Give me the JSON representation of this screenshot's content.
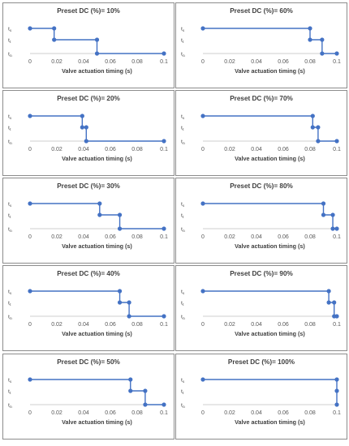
{
  "chart_data": [
    {
      "type": "line",
      "title": "Preset DC (%)= 10%",
      "xlabel": "Valve actuation timing (s)",
      "y_levels": [
        "ts",
        "tt",
        "tn"
      ],
      "xlim": [
        0,
        0.1
      ],
      "x_ticks": [
        "0",
        "0.02",
        "0.04",
        "0.06",
        "0.08",
        "0.1"
      ],
      "points": [
        {
          "x": 0,
          "y": "ts"
        },
        {
          "x": 0.018,
          "y": "ts"
        },
        {
          "x": 0.018,
          "y": "tt"
        },
        {
          "x": 0.05,
          "y": "tt"
        },
        {
          "x": 0.05,
          "y": "tn"
        },
        {
          "x": 0.1,
          "y": "tn"
        }
      ]
    },
    {
      "type": "line",
      "title": "Preset DC (%)= 60%",
      "xlabel": "Valve actuation timing (s)",
      "y_levels": [
        "ts",
        "tt",
        "tn"
      ],
      "xlim": [
        0,
        0.1
      ],
      "x_ticks": [
        "0",
        "0.02",
        "0.04",
        "0.06",
        "0.08",
        "0.1"
      ],
      "points": [
        {
          "x": 0,
          "y": "ts"
        },
        {
          "x": 0.08,
          "y": "ts"
        },
        {
          "x": 0.08,
          "y": "tt"
        },
        {
          "x": 0.089,
          "y": "tt"
        },
        {
          "x": 0.089,
          "y": "tn"
        },
        {
          "x": 0.1,
          "y": "tn"
        }
      ]
    },
    {
      "type": "line",
      "title": "Preset DC (%)= 20%",
      "xlabel": "Valve actuation timing (s)",
      "y_levels": [
        "ts",
        "tt",
        "tn"
      ],
      "xlim": [
        0,
        0.1
      ],
      "x_ticks": [
        "0",
        "0.02",
        "0.04",
        "0.06",
        "0.08",
        "0.1"
      ],
      "points": [
        {
          "x": 0,
          "y": "ts"
        },
        {
          "x": 0.039,
          "y": "ts"
        },
        {
          "x": 0.039,
          "y": "tt"
        },
        {
          "x": 0.042,
          "y": "tt"
        },
        {
          "x": 0.042,
          "y": "tn"
        },
        {
          "x": 0.1,
          "y": "tn"
        }
      ]
    },
    {
      "type": "line",
      "title": "Preset DC (%)= 70%",
      "xlabel": "Valve actuation timing (s)",
      "y_levels": [
        "ts",
        "tt",
        "tn"
      ],
      "xlim": [
        0,
        0.1
      ],
      "x_ticks": [
        "0",
        "0.02",
        "0.04",
        "0.06",
        "0.08",
        "0.1"
      ],
      "points": [
        {
          "x": 0,
          "y": "ts"
        },
        {
          "x": 0.082,
          "y": "ts"
        },
        {
          "x": 0.082,
          "y": "tt"
        },
        {
          "x": 0.086,
          "y": "tt"
        },
        {
          "x": 0.086,
          "y": "tn"
        },
        {
          "x": 0.1,
          "y": "tn"
        }
      ]
    },
    {
      "type": "line",
      "title": "Preset DC (%)= 30%",
      "xlabel": "Valve actuation timing (s)",
      "y_levels": [
        "ts",
        "tt",
        "tn"
      ],
      "xlim": [
        0,
        0.1
      ],
      "x_ticks": [
        "0",
        "0.02",
        "0.04",
        "0.06",
        "0.08",
        "0.1"
      ],
      "points": [
        {
          "x": 0,
          "y": "ts"
        },
        {
          "x": 0.052,
          "y": "ts"
        },
        {
          "x": 0.052,
          "y": "tt"
        },
        {
          "x": 0.067,
          "y": "tt"
        },
        {
          "x": 0.067,
          "y": "tn"
        },
        {
          "x": 0.1,
          "y": "tn"
        }
      ]
    },
    {
      "type": "line",
      "title": "Preset DC (%)= 80%",
      "xlabel": "Valve actuation timing (s)",
      "y_levels": [
        "ts",
        "tt",
        "tn"
      ],
      "xlim": [
        0,
        0.1
      ],
      "x_ticks": [
        "0",
        "0.02",
        "0.04",
        "0.06",
        "0.08",
        "0.1"
      ],
      "points": [
        {
          "x": 0,
          "y": "ts"
        },
        {
          "x": 0.09,
          "y": "ts"
        },
        {
          "x": 0.09,
          "y": "tt"
        },
        {
          "x": 0.097,
          "y": "tt"
        },
        {
          "x": 0.097,
          "y": "tn"
        },
        {
          "x": 0.1,
          "y": "tn"
        }
      ]
    },
    {
      "type": "line",
      "title": "Preset DC (%)= 40%",
      "xlabel": "Valve actuation timing (s)",
      "y_levels": [
        "ts",
        "tt",
        "tn"
      ],
      "xlim": [
        0,
        0.1
      ],
      "x_ticks": [
        "0",
        "0.02",
        "0.04",
        "0.06",
        "0.08",
        "0.1"
      ],
      "points": [
        {
          "x": 0,
          "y": "ts"
        },
        {
          "x": 0.067,
          "y": "ts"
        },
        {
          "x": 0.067,
          "y": "tt"
        },
        {
          "x": 0.074,
          "y": "tt"
        },
        {
          "x": 0.074,
          "y": "tn"
        },
        {
          "x": 0.1,
          "y": "tn"
        }
      ]
    },
    {
      "type": "line",
      "title": "Preset DC (%)= 90%",
      "xlabel": "Valve actuation timing (s)",
      "y_levels": [
        "ts",
        "tt",
        "tn"
      ],
      "xlim": [
        0,
        0.1
      ],
      "x_ticks": [
        "0",
        "0.02",
        "0.04",
        "0.06",
        "0.08",
        "0.1"
      ],
      "points": [
        {
          "x": 0,
          "y": "ts"
        },
        {
          "x": 0.094,
          "y": "ts"
        },
        {
          "x": 0.094,
          "y": "tt"
        },
        {
          "x": 0.098,
          "y": "tt"
        },
        {
          "x": 0.098,
          "y": "tn"
        },
        {
          "x": 0.1,
          "y": "tn"
        }
      ]
    },
    {
      "type": "line",
      "title": "Preset DC (%)= 50%",
      "xlabel": "Valve actuation timing (s)",
      "y_levels": [
        "ts",
        "tt",
        "tn"
      ],
      "xlim": [
        0,
        0.1
      ],
      "x_ticks": [
        "0",
        "0.02",
        "0.04",
        "0.06",
        "0.08",
        "0.1"
      ],
      "points": [
        {
          "x": 0,
          "y": "ts"
        },
        {
          "x": 0.075,
          "y": "ts"
        },
        {
          "x": 0.075,
          "y": "tt"
        },
        {
          "x": 0.086,
          "y": "tt"
        },
        {
          "x": 0.086,
          "y": "tn"
        },
        {
          "x": 0.1,
          "y": "tn"
        }
      ]
    },
    {
      "type": "line",
      "title": "Preset DC (%)= 100%",
      "xlabel": "Valve actuation timing (s)",
      "y_levels": [
        "ts",
        "tt",
        "tn"
      ],
      "xlim": [
        0,
        0.1
      ],
      "x_ticks": [
        "0",
        "0.02",
        "0.04",
        "0.06",
        "0.08",
        "0.1"
      ],
      "points": [
        {
          "x": 0,
          "y": "ts"
        },
        {
          "x": 0.1,
          "y": "ts"
        },
        {
          "x": 0.1,
          "y": "tt"
        },
        {
          "x": 0.1,
          "y": "tn"
        }
      ]
    }
  ],
  "colors": {
    "series": "#4472c4",
    "axis": "#bfbfbf",
    "text": "#404040",
    "tick_text": "#595959",
    "border": "#8c8c8c"
  }
}
